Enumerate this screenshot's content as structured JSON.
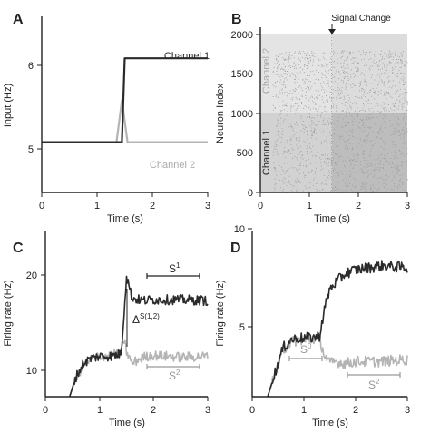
{
  "panels": {
    "A": {
      "label": "A",
      "xlabel": "Time (s)",
      "ylabel": "Input (Hz)",
      "xticks": [
        "0",
        "1",
        "2",
        "3"
      ],
      "yticks": [
        "5",
        "6"
      ],
      "legend": {
        "channel1": "Channel 1",
        "channel2": "Channel 2"
      }
    },
    "B": {
      "label": "B",
      "xlabel": "Time (s)",
      "ylabel": "Neuron Index",
      "xticks": [
        "0",
        "1",
        "2",
        "3"
      ],
      "yticks": [
        "0",
        "500",
        "1000",
        "1500",
        "2000"
      ],
      "annotation": "Signal Change",
      "channel1_label": "Channel 1",
      "channel2_label": "Channel 2"
    },
    "C": {
      "label": "C",
      "xlabel": "Time (s)",
      "ylabel": "Firing rate (Hz)",
      "xticks": [
        "0",
        "1",
        "2",
        "3"
      ],
      "yticks": [
        "10",
        "20"
      ],
      "s1_label": "S",
      "s1_sup": "1",
      "s2_label": "S",
      "s2_sup": "2",
      "delta_label": "Δ",
      "delta_sup": "S(1,2)"
    },
    "D": {
      "label": "D",
      "xlabel": "Time (s)",
      "ylabel": "Firing rate (Hz)",
      "xticks": [
        "0",
        "1",
        "2",
        "3"
      ],
      "yticks": [
        "5",
        "10"
      ],
      "s0_label": "S",
      "s0_sup": "0",
      "s2_label": "S",
      "s2_sup": "2"
    }
  },
  "colors": {
    "channel1": "#2b2b2b",
    "channel2": "#b4b4b4",
    "raster": "#9a9a9a",
    "axis": "#222222"
  },
  "chart_data": [
    {
      "panel": "A",
      "type": "line",
      "xlim": [
        0,
        3
      ],
      "ylim": [
        4.4,
        6.5
      ],
      "series": [
        {
          "name": "Channel 1",
          "x": [
            0,
            1.45,
            1.5,
            3
          ],
          "y": [
            5,
            5,
            6,
            6
          ]
        },
        {
          "name": "Channel 2",
          "x": [
            0,
            1.35,
            1.45,
            1.55,
            3
          ],
          "y": [
            5,
            5,
            5.5,
            5,
            5
          ]
        }
      ]
    },
    {
      "panel": "B",
      "type": "scatter",
      "xlim": [
        0,
        3
      ],
      "ylim": [
        0,
        2000
      ],
      "series": [
        {
          "name": "Channel 1",
          "neuron_range": [
            0,
            1000
          ],
          "onset_s": 0.25
        },
        {
          "name": "Channel 2",
          "neuron_range": [
            1000,
            1800
          ],
          "onset_s": 0.25
        }
      ],
      "signal_change_s": 1.45
    },
    {
      "panel": "C",
      "type": "line",
      "xlim": [
        0,
        3
      ],
      "ylim": [
        7.5,
        26
      ],
      "series": [
        {
          "name": "Channel 1",
          "x": [
            0.45,
            0.55,
            0.7,
            0.85,
            1.0,
            1.2,
            1.4,
            1.45,
            1.5,
            1.6,
            1.8,
            2.0,
            2.5,
            3.0
          ],
          "y": [
            7.5,
            9.5,
            11.2,
            11.8,
            12.0,
            12.0,
            12.3,
            16.5,
            21.0,
            18.5,
            18.2,
            18.3,
            18.3,
            18.2
          ]
        },
        {
          "name": "Channel 2",
          "x": [
            0.45,
            0.55,
            0.7,
            0.85,
            1.0,
            1.2,
            1.4,
            1.45,
            1.5,
            1.6,
            1.8,
            2.0,
            2.5,
            3.0
          ],
          "y": [
            7.5,
            9.3,
            11.0,
            11.7,
            12.0,
            12.1,
            12.3,
            14.0,
            12.5,
            11.2,
            11.9,
            12.1,
            11.9,
            12.0
          ]
        }
      ]
    },
    {
      "panel": "D",
      "type": "line",
      "xlim": [
        0,
        3
      ],
      "ylim": [
        1.5,
        10
      ],
      "series": [
        {
          "name": "Channel 1",
          "x": [
            0.3,
            0.45,
            0.6,
            0.75,
            0.9,
            1.1,
            1.3,
            1.4,
            1.5,
            1.6,
            1.8,
            2.0,
            2.5,
            3.0
          ],
          "y": [
            1.5,
            2.8,
            4.0,
            4.4,
            4.5,
            4.5,
            4.6,
            6.0,
            7.0,
            7.3,
            7.8,
            8.0,
            8.2,
            8.1
          ]
        },
        {
          "name": "Channel 2",
          "x": [
            0.3,
            0.45,
            0.6,
            0.75,
            0.9,
            1.1,
            1.3,
            1.4,
            1.5,
            1.6,
            1.8,
            2.0,
            2.5,
            3.0
          ],
          "y": [
            1.5,
            2.7,
            3.9,
            4.3,
            4.4,
            4.4,
            4.5,
            3.6,
            3.2,
            3.3,
            3.2,
            3.3,
            3.3,
            3.4
          ]
        }
      ]
    }
  ]
}
